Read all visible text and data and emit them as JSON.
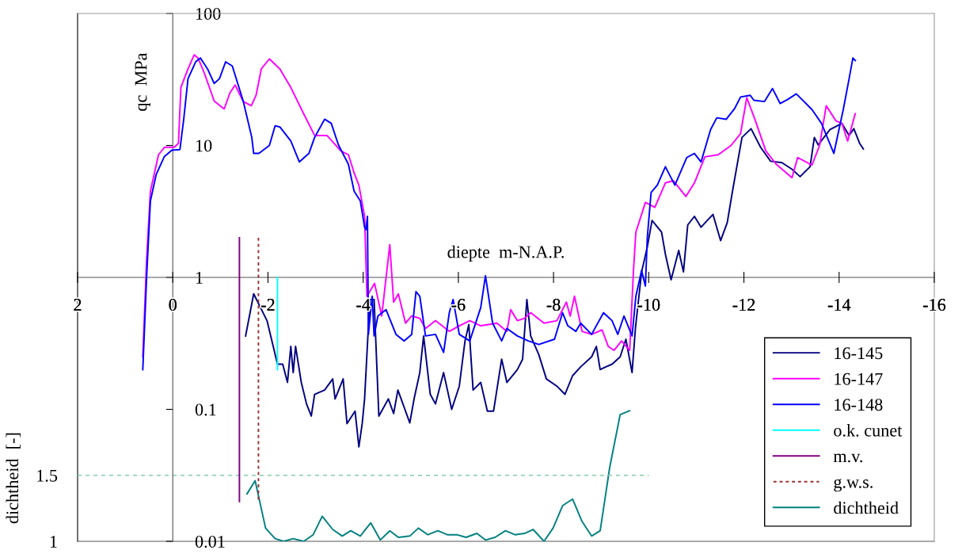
{
  "chart_data": {
    "type": "line",
    "xlabel": "diepte  m-N.A.P.",
    "ylabel": "qc  MPa",
    "y2label": "dichtheid  [-]",
    "xlim": [
      2,
      -16
    ],
    "xticks": [
      2,
      0,
      -2,
      -4,
      -6,
      -8,
      -10,
      -12,
      -14,
      -16
    ],
    "ylim": [
      0.01,
      100
    ],
    "yticks": [
      0.01,
      0.1,
      1,
      10,
      100
    ],
    "log": "y",
    "y2lim": [
      1,
      5
    ],
    "y2ticks": [
      1,
      1.5
    ],
    "legend": "lower right",
    "series": [
      {
        "name": "16-145",
        "color": "#000080",
        "x": [
          -1.53,
          -1.7,
          -1.98,
          -2.2,
          -2.31,
          -2.41,
          -2.48,
          -2.53,
          -2.58,
          -2.7,
          -2.81,
          -2.91,
          -2.98,
          -3.19,
          -3.36,
          -3.41,
          -3.58,
          -3.66,
          -3.83,
          -3.91,
          -3.98,
          -4.03,
          -4.14,
          -4.23,
          -4.33,
          -4.53,
          -4.64,
          -4.73,
          -4.98,
          -5.07,
          -5.19,
          -5.27,
          -5.41,
          -5.52,
          -5.69,
          -5.86,
          -6.02,
          -6.14,
          -6.22,
          -6.31,
          -6.47,
          -6.61,
          -6.74,
          -6.91,
          -7.02,
          -7.24,
          -7.35,
          -7.44,
          -7.52,
          -7.69,
          -7.85,
          -8.07,
          -8.24,
          -8.4,
          -8.57,
          -8.8,
          -8.9,
          -8.98,
          -9.1,
          -9.23,
          -9.4,
          -9.52,
          -9.65,
          -9.72,
          -9.85,
          -9.97,
          -10.07,
          -10.27,
          -10.35,
          -10.47,
          -10.63,
          -10.73,
          -10.82,
          -10.96,
          -11.1,
          -11.23,
          -11.35,
          -11.51,
          -11.65,
          -11.76,
          -11.96,
          -12.15,
          -12.35,
          -12.56,
          -12.8,
          -13.01,
          -13.18,
          -13.39,
          -13.48,
          -13.56,
          -13.81,
          -14.06,
          -14.21,
          -14.31,
          -14.43,
          -14.51
        ],
        "values": [
          0.36,
          0.75,
          0.47,
          0.22,
          0.22,
          0.16,
          0.3,
          0.19,
          0.3,
          0.16,
          0.11,
          0.089,
          0.13,
          0.14,
          0.17,
          0.12,
          0.17,
          0.078,
          0.097,
          0.052,
          0.078,
          0.12,
          0.68,
          0.68,
          0.089,
          0.12,
          0.093,
          0.14,
          0.079,
          0.12,
          0.19,
          0.36,
          0.13,
          0.11,
          0.19,
          0.1,
          0.15,
          0.33,
          0.44,
          0.14,
          0.16,
          0.097,
          0.097,
          0.24,
          0.16,
          0.2,
          0.24,
          0.68,
          0.36,
          0.26,
          0.17,
          0.15,
          0.13,
          0.18,
          0.21,
          0.25,
          0.3,
          0.2,
          0.21,
          0.22,
          0.25,
          0.34,
          0.19,
          0.41,
          1.1,
          1.7,
          2.7,
          2.2,
          1.5,
          0.96,
          1.6,
          1.1,
          2.5,
          2.9,
          2.4,
          2.7,
          3.0,
          1.9,
          2.6,
          4.5,
          11.5,
          13.4,
          9.7,
          7.6,
          7.4,
          6.6,
          5.8,
          6.9,
          11.5,
          10.1,
          13.2,
          14.7,
          11.9,
          13.4,
          10.4,
          9.4
        ]
      },
      {
        "name": "16-147",
        "color": "#ff00ff",
        "x": [
          0.63,
          0.55,
          0.47,
          0.3,
          0.17,
          -0.03,
          -0.12,
          -0.17,
          -0.32,
          -0.45,
          -0.53,
          -0.67,
          -0.87,
          -1.08,
          -1.2,
          -1.31,
          -1.48,
          -1.65,
          -1.75,
          -1.86,
          -2.03,
          -2.25,
          -2.48,
          -2.75,
          -2.98,
          -3.24,
          -3.53,
          -3.69,
          -3.81,
          -3.91,
          -4.03,
          -4.08,
          -4.24,
          -4.39,
          -4.56,
          -4.64,
          -4.74,
          -4.89,
          -5.02,
          -5.19,
          -5.31,
          -5.52,
          -5.81,
          -6.02,
          -6.24,
          -6.47,
          -6.81,
          -7.02,
          -7.1,
          -7.24,
          -7.39,
          -7.52,
          -7.8,
          -8.07,
          -8.27,
          -8.35,
          -8.44,
          -8.6,
          -8.8,
          -9.02,
          -9.15,
          -9.27,
          -9.43,
          -9.6,
          -9.68,
          -9.73,
          -9.93,
          -10.13,
          -10.35,
          -10.52,
          -10.78,
          -10.96,
          -11.18,
          -11.46,
          -11.73,
          -11.93,
          -12.06,
          -12.23,
          -12.46,
          -12.68,
          -13.01,
          -13.13,
          -13.43,
          -13.59,
          -13.73,
          -13.93,
          -14.06,
          -14.18,
          -14.34
        ],
        "values": [
          0.25,
          1.36,
          4.5,
          8.5,
          9.7,
          9.7,
          10.4,
          27.5,
          38,
          48.6,
          46,
          34.8,
          21.7,
          18.9,
          25,
          28.7,
          21.5,
          20,
          24,
          38,
          45.3,
          38,
          27.5,
          17.4,
          11.9,
          11.9,
          9.1,
          8.5,
          6.2,
          5.0,
          2.9,
          0.72,
          0.9,
          0.51,
          1.77,
          0.65,
          0.75,
          0.45,
          0.51,
          0.49,
          0.41,
          0.47,
          0.39,
          0.43,
          0.47,
          0.43,
          0.45,
          0.39,
          0.57,
          0.47,
          0.49,
          0.54,
          0.45,
          0.47,
          0.65,
          0.51,
          0.72,
          0.39,
          0.37,
          0.4,
          0.3,
          0.28,
          0.33,
          0.28,
          1.13,
          2.2,
          3.7,
          3.4,
          5.2,
          5.4,
          4.1,
          5.2,
          8.2,
          8.5,
          10,
          12.3,
          23,
          15.8,
          9.1,
          7.2,
          5.7,
          8.1,
          7.1,
          10,
          20,
          15.4,
          14.7,
          10.8,
          17.4
        ]
      },
      {
        "name": "16-148",
        "color": "#0000ff",
        "x": [
          0.63,
          0.55,
          0.47,
          0.35,
          0.18,
          0.02,
          -0.15,
          -0.23,
          -0.32,
          -0.48,
          -0.58,
          -0.73,
          -0.87,
          -0.98,
          -1.11,
          -1.25,
          -1.48,
          -1.66,
          -1.7,
          -1.81,
          -2.03,
          -2.15,
          -2.25,
          -2.48,
          -2.66,
          -2.86,
          -2.98,
          -3.19,
          -3.33,
          -3.48,
          -3.69,
          -3.81,
          -3.94,
          -4.03,
          -4.06,
          -4.09,
          -4.11,
          -4.19,
          -4.23,
          -4.31,
          -4.48,
          -4.69,
          -4.86,
          -5.02,
          -5.11,
          -5.19,
          -5.31,
          -5.52,
          -5.69,
          -5.81,
          -5.89,
          -6.02,
          -6.24,
          -6.47,
          -6.57,
          -6.72,
          -6.91,
          -7.02,
          -7.24,
          -7.47,
          -7.69,
          -8.02,
          -8.19,
          -8.3,
          -8.47,
          -8.57,
          -8.8,
          -9.05,
          -9.23,
          -9.35,
          -9.48,
          -9.65,
          -9.73,
          -9.85,
          -9.93,
          -9.97,
          -10.05,
          -10.18,
          -10.35,
          -10.55,
          -10.8,
          -10.96,
          -11.1,
          -11.3,
          -11.43,
          -11.63,
          -11.8,
          -11.93,
          -12.13,
          -12.21,
          -12.43,
          -12.6,
          -12.76,
          -12.93,
          -13.1,
          -13.43,
          -13.63,
          -13.89,
          -14.09,
          -14.21,
          -14.29,
          -14.34
        ],
        "values": [
          0.2,
          1.0,
          3.8,
          6.0,
          8.2,
          9.2,
          9.3,
          15.8,
          32,
          43,
          46,
          38,
          29.5,
          32,
          43,
          40,
          21.7,
          11.5,
          8.7,
          8.7,
          10,
          14.1,
          13.8,
          10.8,
          7.5,
          8.7,
          11.5,
          15.8,
          14.7,
          10.1,
          7.2,
          4.5,
          3.8,
          2.4,
          2.3,
          2.9,
          0.37,
          0.72,
          0.36,
          0.51,
          0.57,
          0.37,
          0.33,
          0.37,
          0.78,
          0.72,
          0.36,
          0.37,
          0.27,
          0.54,
          0.68,
          0.37,
          0.33,
          0.59,
          1.03,
          0.45,
          0.33,
          0.41,
          0.36,
          0.33,
          0.31,
          0.34,
          0.54,
          0.43,
          0.39,
          0.45,
          0.37,
          0.54,
          0.47,
          0.37,
          0.51,
          0.36,
          0.72,
          1.13,
          0.86,
          2.0,
          4.4,
          5.0,
          6.9,
          5.0,
          8.1,
          8.7,
          7.5,
          13.2,
          16.2,
          15.8,
          18.9,
          23.3,
          24,
          22,
          21.5,
          27,
          20.8,
          22.4,
          24.6,
          18.7,
          14.7,
          8.7,
          18.9,
          32,
          46,
          44
        ]
      },
      {
        "name": "o.k. cunet",
        "color": "#00ffff",
        "x": [
          -2.2,
          -2.2
        ],
        "values": [
          1.0,
          0.2
        ]
      },
      {
        "name": "m.v.",
        "color": "#800080",
        "x": [
          -1.4,
          -1.4
        ],
        "values": [
          2.0,
          0.02
        ]
      },
      {
        "name": "g.w.s.",
        "color": "#993333",
        "line_style": "dotted",
        "x": [
          -1.8,
          -1.8
        ],
        "values": [
          2.0,
          0.02
        ]
      },
      {
        "name": "dichtheid",
        "color": "#008080",
        "axis": "y2",
        "x": [
          -1.56,
          -1.73,
          -1.95,
          -2.15,
          -2.33,
          -2.53,
          -2.75,
          -2.95,
          -3.14,
          -3.36,
          -3.56,
          -3.74,
          -3.94,
          -4.16,
          -4.36,
          -4.56,
          -4.74,
          -4.98,
          -5.16,
          -5.36,
          -5.57,
          -5.77,
          -5.97,
          -6.16,
          -6.39,
          -6.57,
          -6.77,
          -6.99,
          -7.19,
          -7.39,
          -7.57,
          -7.8,
          -7.99,
          -8.19,
          -8.4,
          -8.6,
          -8.8,
          -8.98,
          -9.18,
          -9.4,
          -9.6
        ],
        "values": [
          1.36,
          1.46,
          1.1,
          1.02,
          1.0,
          1.02,
          1.0,
          1.05,
          1.19,
          1.09,
          1.04,
          1.08,
          1.04,
          1.14,
          1.01,
          1.08,
          1.03,
          1.04,
          1.1,
          1.05,
          1.08,
          1.05,
          1.05,
          1.03,
          1.06,
          1.01,
          1.03,
          1.08,
          1.05,
          1.06,
          1.09,
          1.0,
          1.1,
          1.27,
          1.32,
          1.15,
          1.04,
          1.08,
          1.56,
          1.96,
          1.99
        ]
      },
      {
        "color": "#88ccaa",
        "axis": "y2",
        "line_style": "dashed",
        "x": [
          2,
          -10
        ],
        "values": [
          1.5,
          1.5
        ]
      }
    ]
  }
}
